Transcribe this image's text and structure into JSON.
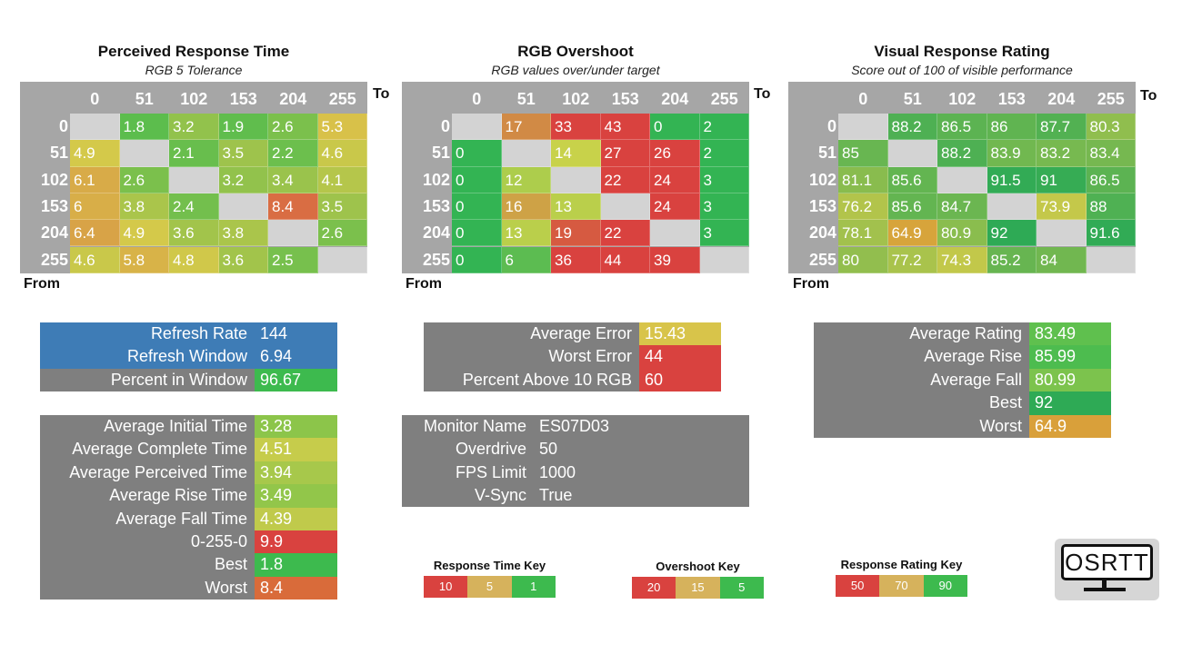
{
  "chart_data": [
    {
      "type": "heatmap",
      "title": "Perceived Response Time",
      "subtitle": "RGB 5 Tolerance",
      "xlabel": "To",
      "ylabel": "From",
      "columns": [
        "0",
        "51",
        "102",
        "153",
        "204",
        "255"
      ],
      "rows": [
        "0",
        "51",
        "102",
        "153",
        "204",
        "255"
      ],
      "values": [
        [
          null,
          "1.8",
          "3.2",
          "1.9",
          "2.6",
          "5.3"
        ],
        [
          "4.9",
          null,
          "2.1",
          "3.5",
          "2.2",
          "4.6"
        ],
        [
          "6.1",
          "2.6",
          null,
          "3.2",
          "3.4",
          "4.1"
        ],
        [
          "6",
          "3.8",
          "2.4",
          null,
          "8.4",
          "3.5"
        ],
        [
          "6.4",
          "4.9",
          "3.6",
          "3.8",
          null,
          "2.6"
        ],
        [
          "4.6",
          "5.8",
          "4.8",
          "3.6",
          "2.5",
          null
        ]
      ],
      "scale": {
        "stops": [
          1,
          5,
          10
        ],
        "colors": [
          "#3dba4e",
          "#d8c94a",
          "#d9423f"
        ]
      }
    },
    {
      "type": "heatmap",
      "title": "RGB Overshoot",
      "subtitle": "RGB values over/under target",
      "xlabel": "To",
      "ylabel": "From",
      "columns": [
        "0",
        "51",
        "102",
        "153",
        "204",
        "255"
      ],
      "rows": [
        "0",
        "51",
        "102",
        "153",
        "204",
        "255"
      ],
      "values": [
        [
          null,
          "17",
          "33",
          "43",
          "0",
          "2"
        ],
        [
          "0",
          null,
          "14",
          "27",
          "26",
          "2"
        ],
        [
          "0",
          "12",
          null,
          "22",
          "24",
          "3"
        ],
        [
          "0",
          "16",
          "13",
          null,
          "24",
          "3"
        ],
        [
          "0",
          "13",
          "19",
          "22",
          null,
          "3"
        ],
        [
          "0",
          "6",
          "36",
          "44",
          "39",
          null
        ]
      ],
      "scale": {
        "stops": [
          3,
          14,
          20
        ],
        "colors": [
          "#33b453",
          "#c8d24a",
          "#d9423f"
        ]
      }
    },
    {
      "type": "heatmap",
      "title": "Visual Response Rating",
      "subtitle": "Score out of 100 of visible performance",
      "xlabel": "To",
      "ylabel": "From",
      "columns": [
        "0",
        "51",
        "102",
        "153",
        "204",
        "255"
      ],
      "rows": [
        "0",
        "51",
        "102",
        "153",
        "204",
        "255"
      ],
      "values": [
        [
          null,
          "88.2",
          "86.5",
          "86",
          "87.7",
          "80.3"
        ],
        [
          "85",
          null,
          "88.2",
          "83.9",
          "83.2",
          "83.4"
        ],
        [
          "81.1",
          "85.6",
          null,
          "91.5",
          "91",
          "86.5"
        ],
        [
          "76.2",
          "85.6",
          "84.7",
          null,
          "73.9",
          "88"
        ],
        [
          "78.1",
          "64.9",
          "80.9",
          "92",
          null,
          "91.6"
        ],
        [
          "80",
          "77.2",
          "74.3",
          "85.2",
          "84",
          null
        ]
      ],
      "scale": {
        "stops": [
          92,
          74,
          64
        ],
        "colors": [
          "#2eaa55",
          "#c4c84a",
          "#d9a03a"
        ]
      }
    }
  ],
  "refresh_panel": [
    {
      "label": "Refresh Rate",
      "value": "144",
      "bg": "#3e7cb6",
      "vbg": "#3e7cb6"
    },
    {
      "label": "Refresh Window",
      "value": "6.94",
      "bg": "#3e7cb6",
      "vbg": "#3e7cb6"
    },
    {
      "label": "Percent in Window",
      "value": "96.67",
      "bg": "#7f7f7f",
      "vbg": "#3dba4e"
    }
  ],
  "time_panel": [
    {
      "label": "Average Initial Time",
      "value": "3.28",
      "vbg": "#8cc54a"
    },
    {
      "label": "Average Complete Time",
      "value": "4.51",
      "vbg": "#c6cc4b"
    },
    {
      "label": "Average Perceived Time",
      "value": "3.94",
      "vbg": "#a7c84b"
    },
    {
      "label": "Average Rise Time",
      "value": "3.49",
      "vbg": "#92c64a"
    },
    {
      "label": "Average Fall Time",
      "value": "4.39",
      "vbg": "#c0ca4b"
    },
    {
      "label": "0-255-0",
      "value": "9.9",
      "vbg": "#d9423f"
    },
    {
      "label": "Best",
      "value": "1.8",
      "vbg": "#3dba4e"
    },
    {
      "label": "Worst",
      "value": "8.4",
      "vbg": "#d96b3a"
    }
  ],
  "error_panel": [
    {
      "label": "Average Error",
      "value": "15.43",
      "vbg": "#d8c44a"
    },
    {
      "label": "Worst Error",
      "value": "44",
      "vbg": "#d9423f"
    },
    {
      "label": "Percent Above 10 RGB",
      "value": "60",
      "vbg": "#d9423f"
    }
  ],
  "monitor_panel": [
    {
      "label": "Monitor Name",
      "value": "ES07D03"
    },
    {
      "label": "Overdrive",
      "value": "50"
    },
    {
      "label": "FPS Limit",
      "value": "1000"
    },
    {
      "label": "V-Sync",
      "value": "True"
    }
  ],
  "rating_panel": [
    {
      "label": "Average Rating",
      "value": "83.49",
      "vbg": "#5fc04e"
    },
    {
      "label": "Average Rise",
      "value": "85.99",
      "vbg": "#4dbc4f"
    },
    {
      "label": "Average Fall",
      "value": "80.99",
      "vbg": "#7cc34d"
    },
    {
      "label": "Best",
      "value": "92",
      "vbg": "#2eaa55"
    },
    {
      "label": "Worst",
      "value": "64.9",
      "vbg": "#d9a03a"
    }
  ],
  "keys": [
    {
      "title": "Response Time Key",
      "items": [
        "10",
        "5",
        "1"
      ]
    },
    {
      "title": "Overshoot Key",
      "items": [
        "20",
        "15",
        "5"
      ]
    },
    {
      "title": "Response Rating Key",
      "items": [
        "50",
        "70",
        "90"
      ]
    }
  ],
  "key_colors": [
    "#d9423f",
    "#d6b25c",
    "#3dba4e"
  ],
  "logo_text": "OSRTT"
}
